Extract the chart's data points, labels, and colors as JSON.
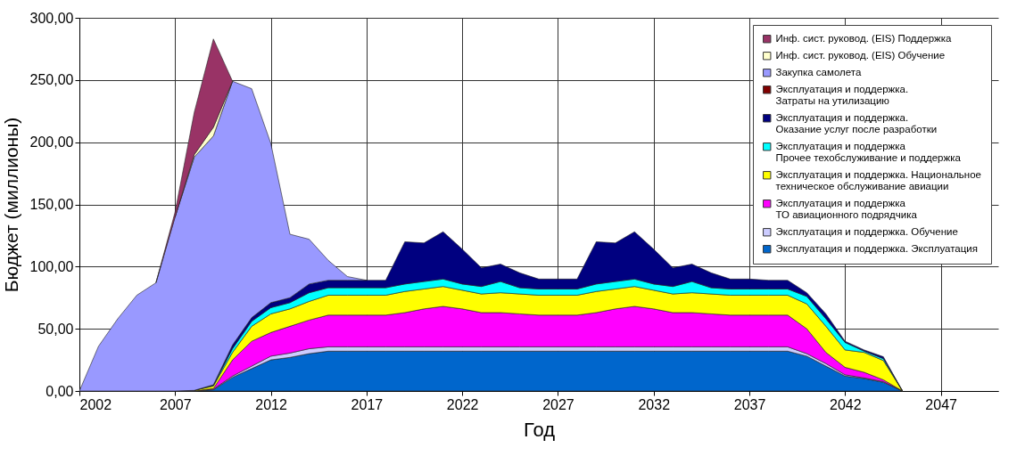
{
  "chart_data": {
    "type": "area",
    "stacked": true,
    "xlabel": "Год",
    "ylabel": "Бюджет (миллионы)",
    "x": [
      2002,
      2003,
      2004,
      2005,
      2006,
      2007,
      2008,
      2009,
      2010,
      2011,
      2012,
      2013,
      2014,
      2015,
      2016,
      2017,
      2018,
      2019,
      2020,
      2021,
      2022,
      2023,
      2024,
      2025,
      2026,
      2027,
      2028,
      2029,
      2030,
      2031,
      2032,
      2033,
      2034,
      2035,
      2036,
      2037,
      2038,
      2039,
      2040,
      2041,
      2042,
      2043,
      2044,
      2045
    ],
    "xlim": [
      2002,
      2050
    ],
    "xticks": [
      2002,
      2007,
      2012,
      2017,
      2022,
      2027,
      2032,
      2037,
      2042,
      2047
    ],
    "ylim": [
      0,
      300
    ],
    "yticks": [
      {
        "value": 0,
        "label": "0,00"
      },
      {
        "value": 50,
        "label": "50,00"
      },
      {
        "value": 100,
        "label": "100,00"
      },
      {
        "value": 150,
        "label": "150,00"
      },
      {
        "value": 200,
        "label": "200,00"
      },
      {
        "value": 250,
        "label": "250,00"
      },
      {
        "value": 300,
        "label": "300,00"
      }
    ],
    "grid": true,
    "legend": "top right",
    "series": [
      {
        "name": "Эксплуатация и поддержка. Эксплуатация",
        "color": "#0066cc",
        "values": [
          0,
          0,
          0,
          0,
          0,
          0,
          0,
          1,
          11,
          18,
          25,
          27,
          30,
          32,
          32,
          32,
          32,
          32,
          32,
          32,
          32,
          32,
          32,
          32,
          32,
          32,
          32,
          32,
          32,
          32,
          32,
          32,
          32,
          32,
          32,
          32,
          32,
          32,
          28,
          20,
          12,
          10,
          7,
          0
        ]
      },
      {
        "name": "Эксплуатация и поддержка. Обучение",
        "color": "#ccccff",
        "values": [
          0,
          0,
          0,
          0,
          0,
          0,
          0,
          0.5,
          1,
          2,
          3,
          3.5,
          4,
          3.5,
          3.5,
          3.5,
          3.5,
          3.5,
          3.5,
          3.5,
          3.5,
          3.5,
          3.5,
          3.5,
          3.5,
          3.5,
          3.5,
          3.5,
          3.5,
          3.5,
          3.5,
          3.5,
          3.5,
          3.5,
          3.5,
          3.5,
          3.5,
          3.5,
          2,
          2,
          1,
          0.5,
          0.5,
          0
        ]
      },
      {
        "name": "Эксплуатация и поддержка\nТО авиационного подрядчика",
        "color": "#ff00ff",
        "values": [
          0,
          0,
          0,
          0,
          0,
          0,
          0,
          0.5,
          13,
          20,
          19,
          21.5,
          23,
          25.5,
          25.5,
          25.5,
          25.5,
          27.5,
          30.5,
          32.5,
          30.5,
          27.5,
          27.5,
          26.5,
          25.5,
          25.5,
          25.5,
          27.5,
          30.5,
          32.5,
          30.5,
          27.5,
          27.5,
          26.5,
          25.5,
          25.5,
          25.5,
          25.5,
          20,
          9,
          6,
          4.5,
          1.5,
          0
        ]
      },
      {
        "name": "Эксплуатация и поддержка. Национальное\nтехническое обслуживание авиации",
        "color": "#ffff00",
        "values": [
          0,
          0,
          0,
          0,
          0,
          0,
          0.5,
          2,
          6,
          12,
          15,
          14,
          15,
          16,
          16,
          16,
          16,
          17,
          16,
          16,
          15,
          15,
          16,
          16,
          16,
          16,
          16,
          17,
          16,
          16,
          15,
          15,
          16,
          16,
          16,
          16,
          16,
          16,
          20,
          21,
          14,
          16,
          15.5,
          0
        ]
      },
      {
        "name": "Эксплуатация и поддержка\nПрочее техобслуживание и поддержка",
        "color": "#00ffff",
        "values": [
          0,
          0,
          0,
          0,
          0,
          0,
          0,
          0.5,
          3,
          4,
          5,
          5,
          7,
          6,
          6,
          6,
          6,
          6,
          6,
          6,
          5,
          6,
          9,
          5,
          5,
          5,
          5,
          6,
          6,
          6,
          5,
          6,
          9,
          5,
          5,
          5,
          5,
          5,
          6,
          6,
          6,
          1,
          1.5,
          0
        ]
      },
      {
        "name": "Эксплуатация и поддержка.\nОказание услуг после разработки",
        "color": "#000080",
        "values": [
          0,
          0,
          0,
          0,
          0,
          0,
          0,
          0.5,
          3,
          3,
          4,
          4,
          7,
          6,
          6,
          6,
          6,
          34,
          31,
          38,
          28,
          15,
          14,
          12,
          8,
          8,
          8,
          34,
          31,
          38,
          28,
          15,
          14,
          12,
          8,
          8,
          7,
          7,
          3,
          4,
          1,
          1,
          1.5,
          0
        ]
      },
      {
        "name": "Эксплуатация и поддержка.\nЗатраты на утилизацию",
        "color": "#800000",
        "values": [
          null,
          null,
          null,
          null,
          null,
          null,
          null,
          null,
          null,
          null,
          null,
          null,
          null,
          null,
          null,
          null,
          null,
          null,
          null,
          null,
          null,
          null,
          null,
          null,
          null,
          null,
          null,
          null,
          null,
          null,
          null,
          null,
          null,
          null,
          null,
          null,
          null,
          null,
          null,
          null,
          null,
          null,
          null,
          null
        ]
      },
      {
        "name": "Закупка самолета",
        "color": "#9999ff",
        "values": [
          0,
          36,
          58,
          77,
          87,
          140,
          187.5,
          200,
          212,
          184,
          128,
          51,
          36,
          16,
          3,
          0,
          null,
          null,
          null,
          null,
          null,
          null,
          null,
          null,
          null,
          null,
          null,
          null,
          null,
          null,
          null,
          null,
          null,
          null,
          null,
          null,
          null,
          null,
          null,
          null,
          null,
          null,
          null,
          null
        ]
      },
      {
        "name": "Инф. сист. руковод. (EIS) Обучение",
        "color": "#ffffcc",
        "values": [
          null,
          null,
          null,
          null,
          null,
          0,
          2,
          7,
          0,
          null,
          null,
          null,
          null,
          null,
          null,
          null,
          null,
          null,
          null,
          null,
          null,
          null,
          null,
          null,
          null,
          null,
          null,
          null,
          null,
          null,
          null,
          null,
          null,
          null,
          null,
          null,
          null,
          null,
          null,
          null,
          null,
          null,
          null,
          null
        ]
      },
      {
        "name": "Инф. сист. руковод. (EIS) Поддержка",
        "color": "#993366",
        "values": [
          null,
          null,
          null,
          null,
          0,
          4,
          34,
          71,
          0,
          null,
          null,
          null,
          null,
          null,
          null,
          null,
          null,
          null,
          null,
          null,
          null,
          null,
          null,
          null,
          null,
          null,
          null,
          null,
          null,
          null,
          null,
          null,
          null,
          null,
          null,
          null,
          null,
          null,
          null,
          null,
          null,
          null,
          null,
          null
        ]
      }
    ]
  }
}
